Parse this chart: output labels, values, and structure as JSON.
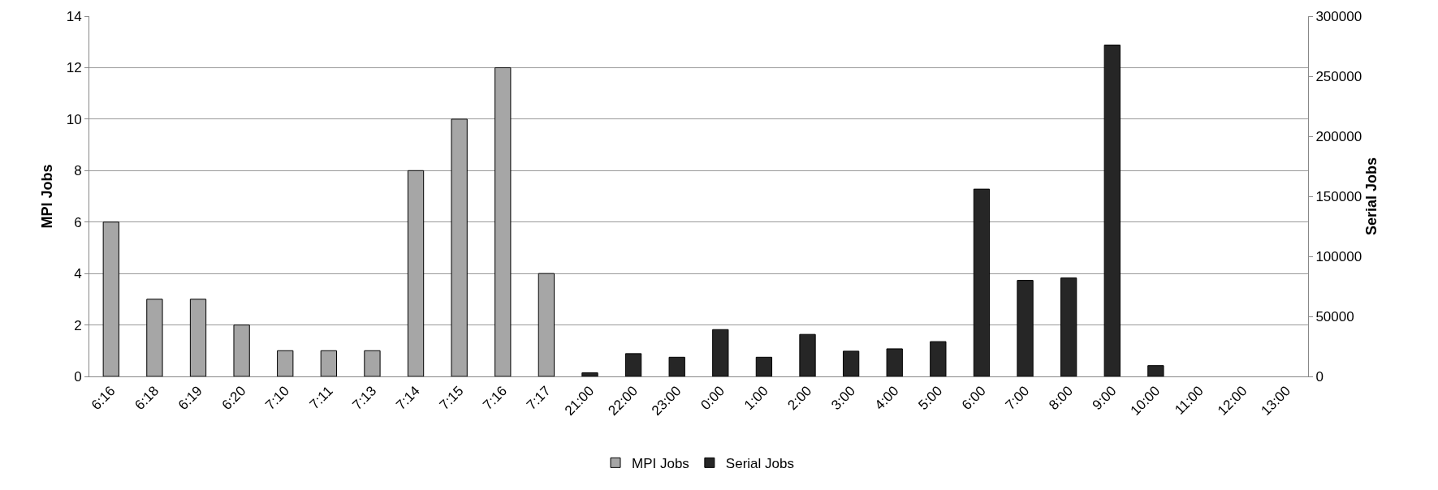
{
  "chart_data": {
    "type": "bar",
    "ylabel": "MPI Jobs",
    "y2label": "Serial Jobs",
    "categories": [
      "6:16",
      "6:18",
      "6:19",
      "6:20",
      "7:10",
      "7:11",
      "7:13",
      "7:14",
      "7:15",
      "7:16",
      "7:17",
      "21:00",
      "22:00",
      "23:00",
      "0:00",
      "1:00",
      "2:00",
      "3:00",
      "4:00",
      "5:00",
      "6:00",
      "7:00",
      "8:00",
      "9:00",
      "10:00",
      "11:00",
      "12:00",
      "13:00"
    ],
    "series": [
      {
        "name": "MPI Jobs",
        "color": "#a6a6a6",
        "values": [
          6,
          3,
          3,
          2,
          1,
          1,
          1,
          8,
          10,
          12,
          4,
          null,
          null,
          null,
          null,
          null,
          null,
          null,
          null,
          null,
          null,
          null,
          null,
          null,
          null,
          null,
          null,
          null
        ]
      },
      {
        "name": "Serial Jobs",
        "color": "#262626",
        "axis": "y2",
        "values": [
          null,
          null,
          null,
          null,
          null,
          null,
          null,
          null,
          null,
          null,
          null,
          3000,
          19000,
          16000,
          39000,
          16000,
          35000,
          21000,
          23000,
          29000,
          156000,
          80000,
          82000,
          276000,
          9000,
          null,
          null,
          null
        ]
      }
    ],
    "ylim": [
      0,
      14
    ],
    "yticks": [
      0,
      2,
      4,
      6,
      8,
      10,
      12,
      14
    ],
    "y2lim": [
      0,
      300000
    ],
    "y2ticks": [
      0,
      50000,
      100000,
      150000,
      200000,
      250000,
      300000
    ],
    "grid": "y",
    "legend": "bottom"
  }
}
